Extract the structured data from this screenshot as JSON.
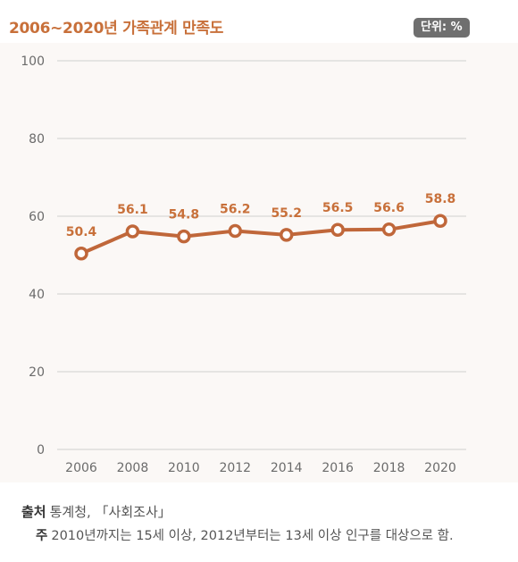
{
  "title": "2006~2020년 가족관계 만족도",
  "unit": "단위: %",
  "chart_data": {
    "type": "line",
    "title": "2006~2020년 가족관계 만족도",
    "x": [
      "2006",
      "2008",
      "2010",
      "2012",
      "2014",
      "2016",
      "2018",
      "2020"
    ],
    "series": [
      {
        "values": [
          50.4,
          56.1,
          54.8,
          56.2,
          55.2,
          56.5,
          56.6,
          58.8
        ]
      }
    ],
    "value_labels": [
      "50.4",
      "56.1",
      "54.8",
      "56.2",
      "55.2",
      "56.5",
      "56.6",
      "58.8"
    ],
    "ylim": [
      0,
      100
    ],
    "yticks": [
      "0",
      "20",
      "40",
      "60",
      "80",
      "100"
    ],
    "grid": true,
    "colors": {
      "line": "#c0673a",
      "marker_fill": "#ffffff",
      "grid": "#cfcfcf",
      "panel": "#fbf8f6"
    }
  },
  "source": {
    "label": "출처",
    "text": "통계청, 「사회조사」"
  },
  "note": {
    "label": "주",
    "text": "2010년까지는 15세 이상, 2012년부터는 13세 이상 인구를 대상으로 함."
  }
}
